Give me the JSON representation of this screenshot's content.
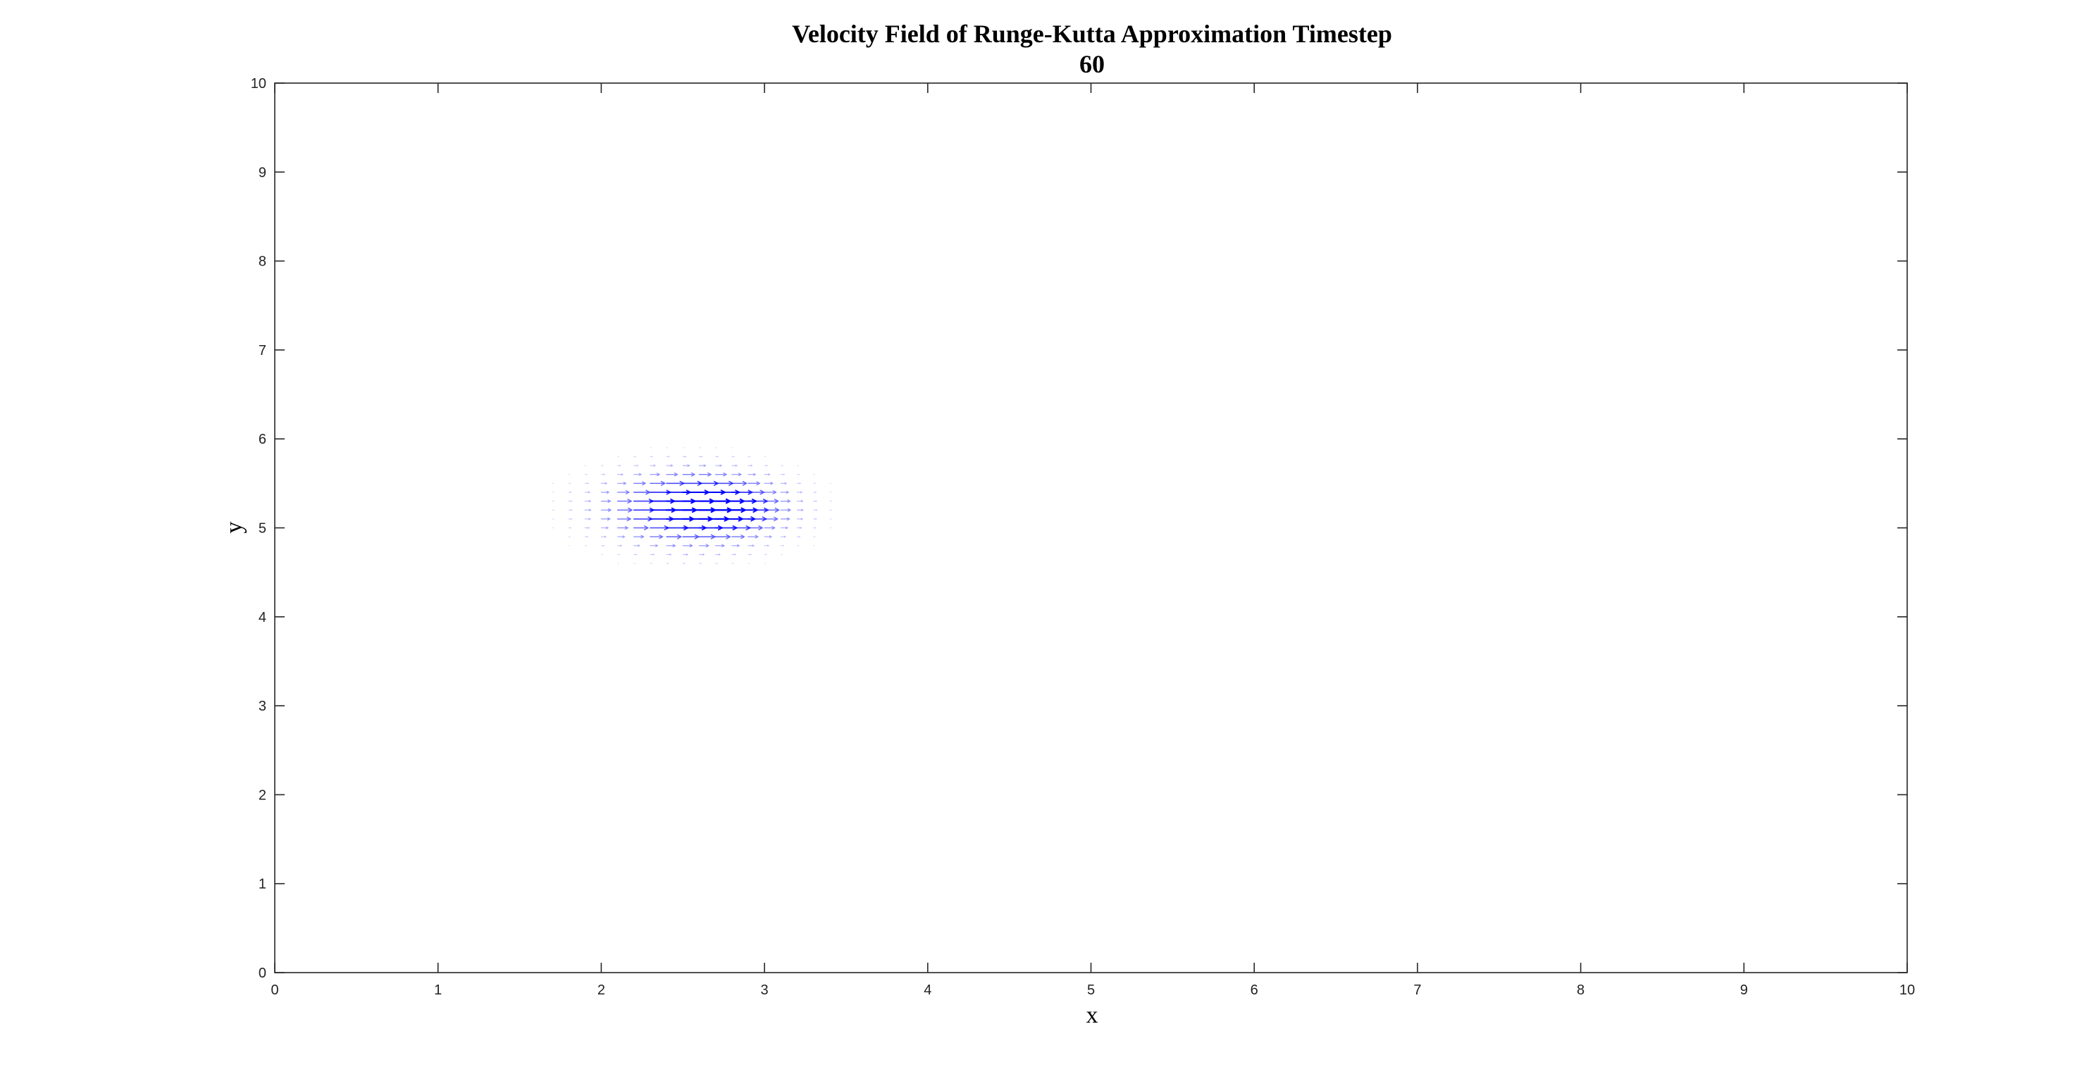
{
  "chart_data": {
    "type": "quiver",
    "title": [
      "Velocity Field of Runge-Kutta Approximation Timestep",
      "60"
    ],
    "xlabel": "x",
    "ylabel": "y",
    "xlim": [
      0,
      10
    ],
    "ylim": [
      0,
      10
    ],
    "xticks": [
      "0",
      "1",
      "2",
      "3",
      "4",
      "5",
      "6",
      "7",
      "8",
      "9",
      "10"
    ],
    "yticks": [
      "0",
      "1",
      "2",
      "3",
      "4",
      "5",
      "6",
      "7",
      "8",
      "9",
      "10"
    ],
    "grid": false,
    "arrow_color": "#0000ff",
    "field": {
      "grid_spacing": 0.1,
      "x_range": [
        1.5,
        3.5
      ],
      "y_range": [
        4.3,
        6.3
      ],
      "center": [
        2.55,
        5.22
      ],
      "peak_u": 0.2,
      "peak_v": 0.0,
      "spread_x": 0.5,
      "spread_y": 0.38
    }
  }
}
